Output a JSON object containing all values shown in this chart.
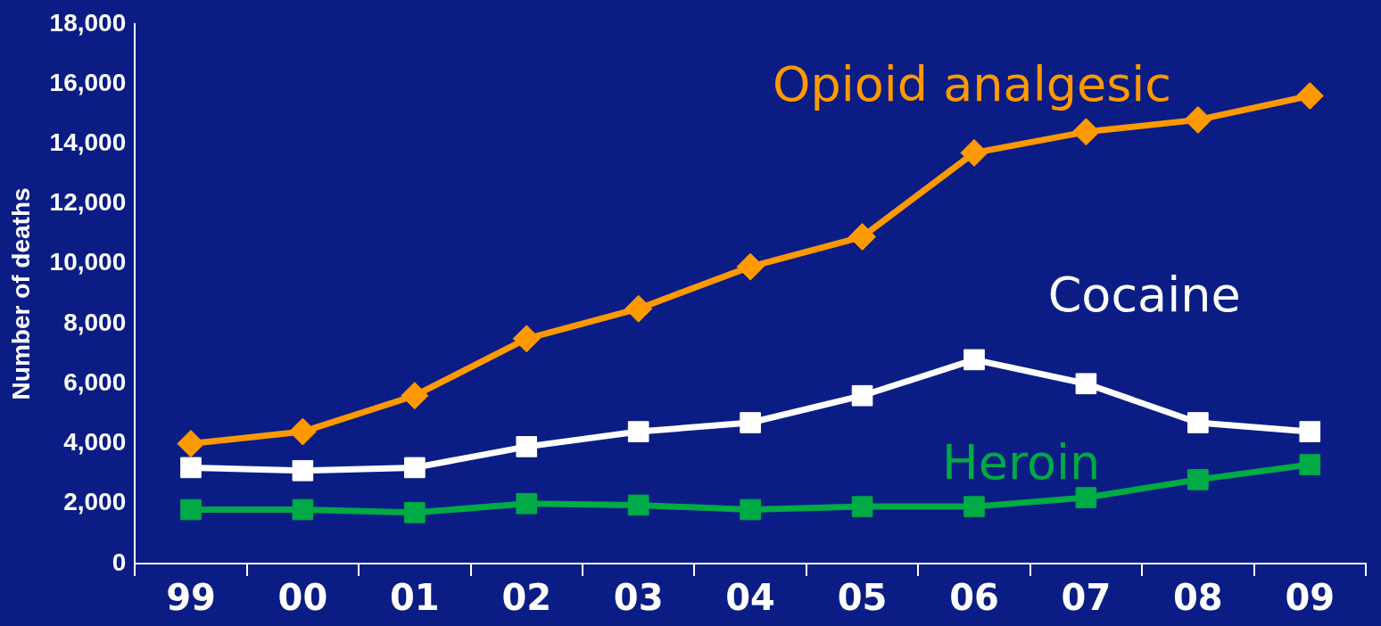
{
  "chart_data": {
    "type": "line",
    "ylabel": "Number of deaths",
    "categories": [
      "99",
      "00",
      "01",
      "02",
      "03",
      "04",
      "05",
      "06",
      "07",
      "08",
      "09"
    ],
    "ylim": [
      0,
      18000
    ],
    "yticks": [
      {
        "value": 0,
        "label": "0"
      },
      {
        "value": 2000,
        "label": "2,000"
      },
      {
        "value": 4000,
        "label": "4,000"
      },
      {
        "value": 6000,
        "label": "6,000"
      },
      {
        "value": 8000,
        "label": "8,000"
      },
      {
        "value": 10000,
        "label": "10,000"
      },
      {
        "value": 12000,
        "label": "12,000"
      },
      {
        "value": 14000,
        "label": "14,000"
      },
      {
        "value": 16000,
        "label": "16,000"
      },
      {
        "value": 18000,
        "label": "18,000"
      }
    ],
    "grid": false,
    "legend": false,
    "line_style": "solid",
    "series": [
      {
        "name": "Opioid analgesic",
        "color": "#ff9900",
        "marker": "diamond",
        "values": [
          4000,
          4400,
          5600,
          7500,
          8500,
          9900,
          10900,
          13700,
          14400,
          14800,
          15600
        ]
      },
      {
        "name": "Cocaine",
        "color": "#ffffff",
        "marker": "square",
        "values": [
          3200,
          3100,
          3200,
          3900,
          4400,
          4700,
          5600,
          6800,
          6000,
          4700,
          4400
        ]
      },
      {
        "name": "Heroin",
        "color": "#00aa44",
        "marker": "square",
        "values": [
          1800,
          1800,
          1700,
          2000,
          1950,
          1800,
          1900,
          1900,
          2200,
          2800,
          3300
        ]
      }
    ]
  }
}
